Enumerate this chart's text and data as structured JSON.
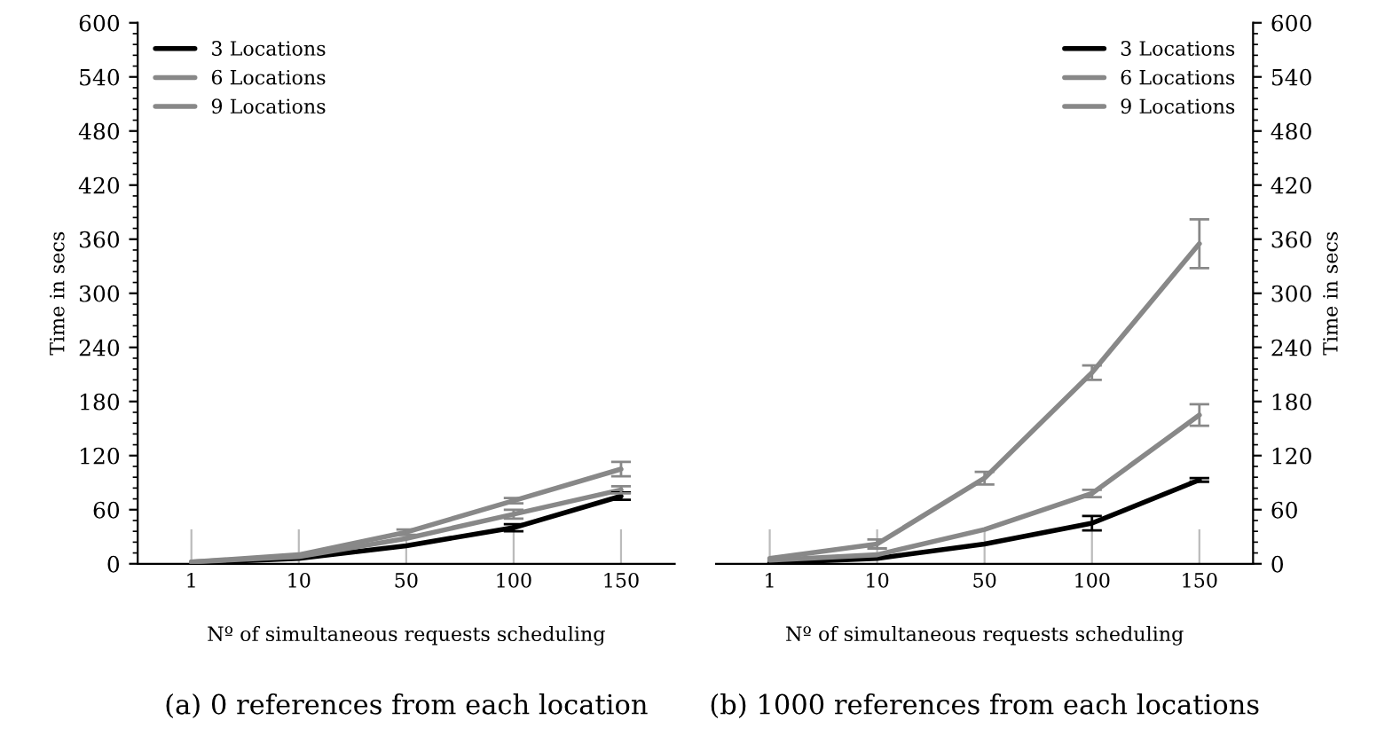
{
  "chart_data": [
    {
      "type": "line",
      "categories": [
        "1",
        "10",
        "50",
        "100",
        "150"
      ],
      "xlabel": "Nº of simultaneous requests scheduling",
      "ylabel": "Time in secs",
      "ylim": [
        0,
        600
      ],
      "yticks": [
        0,
        60,
        120,
        180,
        240,
        300,
        360,
        420,
        480,
        540,
        600
      ],
      "legend": "top left",
      "grid": false,
      "marker": "none",
      "line_style": "solid",
      "annotations": [
        "(a) 0 references from each location"
      ],
      "series": [
        {
          "name": "3 Locations",
          "color": "#000000",
          "values": [
            1,
            6,
            20,
            40,
            75
          ],
          "errors": [
            null,
            null,
            null,
            4,
            4
          ]
        },
        {
          "name": "6 Locations",
          "color": "#888888",
          "values": [
            2,
            8,
            28,
            55,
            82
          ],
          "errors": [
            null,
            null,
            null,
            5,
            4
          ]
        },
        {
          "name": "9 Locations",
          "color": "#888888",
          "values": [
            2,
            10,
            35,
            70,
            105
          ],
          "errors": [
            null,
            null,
            3,
            3,
            8
          ]
        }
      ]
    },
    {
      "type": "line",
      "categories": [
        "1",
        "10",
        "50",
        "100",
        "150"
      ],
      "xlabel": "Nº of simultaneous requests scheduling",
      "y2label": "Time in secs",
      "y2lim": [
        0,
        600
      ],
      "y2ticks": [
        0,
        60,
        120,
        180,
        240,
        300,
        360,
        420,
        480,
        540,
        600
      ],
      "legend": "top right",
      "grid": false,
      "marker": "none",
      "line_style": "solid",
      "annotations": [
        "(b) 1000 references from each locations"
      ],
      "series": [
        {
          "name": "3 Locations",
          "color": "#000000",
          "axis": "y2",
          "values": [
            1,
            6,
            22,
            45,
            93
          ],
          "errors": [
            null,
            null,
            null,
            8,
            2
          ]
        },
        {
          "name": "6 Locations",
          "color": "#888888",
          "axis": "y2",
          "values": [
            4,
            10,
            38,
            78,
            165
          ],
          "errors": [
            null,
            null,
            null,
            4,
            12
          ]
        },
        {
          "name": "9 Locations",
          "color": "#888888",
          "axis": "y2",
          "values": [
            6,
            22,
            95,
            212,
            355
          ],
          "errors": [
            null,
            5,
            7,
            8,
            27
          ]
        }
      ]
    }
  ]
}
